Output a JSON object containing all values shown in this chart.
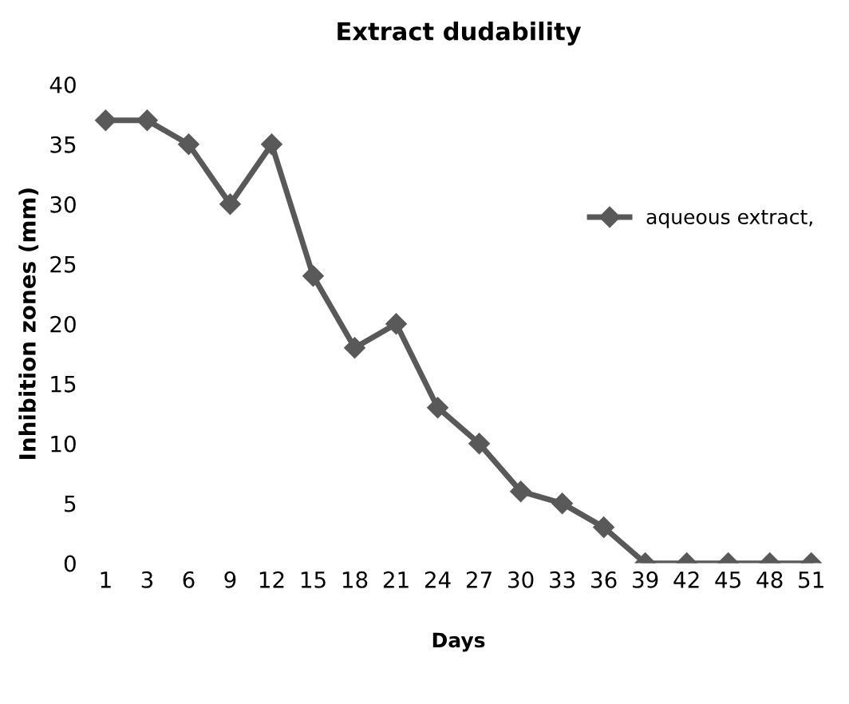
{
  "chart_data": {
    "type": "line",
    "title": "Extract dudability",
    "xlabel": "Days",
    "ylabel": "Inhibition zones (mm)",
    "categories": [
      "1",
      "3",
      "6",
      "9",
      "12",
      "15",
      "18",
      "21",
      "24",
      "27",
      "30",
      "33",
      "36",
      "39",
      "42",
      "45",
      "48",
      "51"
    ],
    "series": [
      {
        "name": "aqueous extract,",
        "color": "#595959",
        "values": [
          37,
          37,
          35,
          30,
          35,
          24,
          18,
          20,
          13,
          10,
          6,
          5,
          3,
          0,
          0,
          0,
          0,
          0
        ]
      }
    ],
    "ylim": [
      0,
      40
    ],
    "yticks": [
      0,
      5,
      10,
      15,
      20,
      25,
      30,
      35,
      40
    ],
    "grid": false,
    "legend": "right",
    "marker": "diamond",
    "line_style": "solid"
  }
}
